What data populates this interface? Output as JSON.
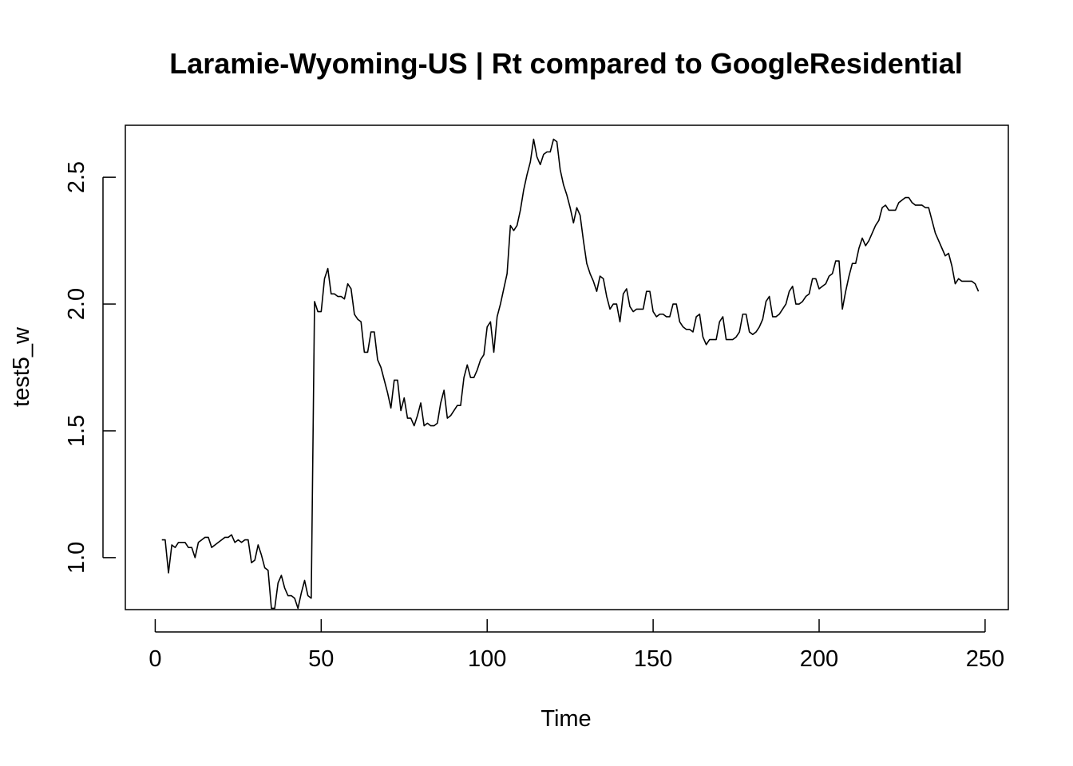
{
  "chart_data": {
    "type": "line",
    "title": "Laramie-Wyoming-US | Rt compared to GoogleResidential",
    "xlabel": "Time",
    "ylabel": "test5_w",
    "xlim": [
      -9,
      257
    ],
    "ylim": [
      0.795,
      2.705
    ],
    "x_ticks": [
      0,
      50,
      100,
      150,
      200,
      250
    ],
    "y_ticks": [
      1.0,
      1.5,
      2.0,
      2.5
    ],
    "x_tick_labels": [
      "0",
      "50",
      "100",
      "150",
      "200",
      "250"
    ],
    "y_tick_labels": [
      "1.0",
      "1.5",
      "2.0",
      "2.5"
    ],
    "grid": false,
    "legend": "none",
    "series": [
      {
        "color": "#000000",
        "x_start": 2,
        "values": [
          1.07,
          1.07,
          0.94,
          1.05,
          1.04,
          1.06,
          1.06,
          1.06,
          1.04,
          1.04,
          1.0,
          1.06,
          1.07,
          1.08,
          1.08,
          1.04,
          1.05,
          1.06,
          1.07,
          1.08,
          1.08,
          1.09,
          1.06,
          1.07,
          1.06,
          1.07,
          1.07,
          0.98,
          0.99,
          1.05,
          1.01,
          0.96,
          0.95,
          0.8,
          0.8,
          0.9,
          0.93,
          0.88,
          0.85,
          0.85,
          0.84,
          0.8,
          0.86,
          0.91,
          0.85,
          0.84,
          2.01,
          1.97,
          1.97,
          2.1,
          2.14,
          2.04,
          2.04,
          2.03,
          2.03,
          2.02,
          2.08,
          2.06,
          1.96,
          1.94,
          1.93,
          1.81,
          1.81,
          1.89,
          1.89,
          1.78,
          1.75,
          1.7,
          1.65,
          1.59,
          1.7,
          1.7,
          1.58,
          1.63,
          1.55,
          1.55,
          1.52,
          1.56,
          1.61,
          1.52,
          1.53,
          1.52,
          1.52,
          1.53,
          1.61,
          1.66,
          1.55,
          1.56,
          1.58,
          1.6,
          1.6,
          1.71,
          1.76,
          1.71,
          1.71,
          1.74,
          1.78,
          1.8,
          1.91,
          1.93,
          1.81,
          1.95,
          2.0,
          2.06,
          2.12,
          2.31,
          2.29,
          2.31,
          2.37,
          2.45,
          2.51,
          2.56,
          2.65,
          2.58,
          2.55,
          2.59,
          2.6,
          2.6,
          2.65,
          2.64,
          2.53,
          2.47,
          2.43,
          2.38,
          2.32,
          2.38,
          2.35,
          2.25,
          2.16,
          2.12,
          2.09,
          2.05,
          2.11,
          2.1,
          2.03,
          1.98,
          2.0,
          2.0,
          1.93,
          2.04,
          2.06,
          1.99,
          1.97,
          1.98,
          1.98,
          1.98,
          2.05,
          2.05,
          1.97,
          1.95,
          1.96,
          1.96,
          1.95,
          1.95,
          2.0,
          2.0,
          1.93,
          1.91,
          1.9,
          1.9,
          1.89,
          1.95,
          1.96,
          1.87,
          1.84,
          1.86,
          1.86,
          1.86,
          1.93,
          1.95,
          1.86,
          1.86,
          1.86,
          1.87,
          1.89,
          1.96,
          1.96,
          1.89,
          1.88,
          1.89,
          1.91,
          1.94,
          2.01,
          2.03,
          1.95,
          1.95,
          1.96,
          1.98,
          2.0,
          2.05,
          2.07,
          2.0,
          2.0,
          2.01,
          2.03,
          2.04,
          2.1,
          2.1,
          2.06,
          2.07,
          2.08,
          2.11,
          2.12,
          2.17,
          2.17,
          1.98,
          2.05,
          2.11,
          2.16,
          2.16,
          2.22,
          2.26,
          2.23,
          2.25,
          2.28,
          2.31,
          2.33,
          2.38,
          2.39,
          2.37,
          2.37,
          2.37,
          2.4,
          2.41,
          2.42,
          2.42,
          2.4,
          2.39,
          2.39,
          2.39,
          2.38,
          2.38,
          2.33,
          2.28,
          2.25,
          2.22,
          2.19,
          2.2,
          2.15,
          2.08,
          2.1,
          2.09,
          2.09,
          2.09,
          2.09,
          2.08,
          2.05
        ]
      }
    ]
  }
}
